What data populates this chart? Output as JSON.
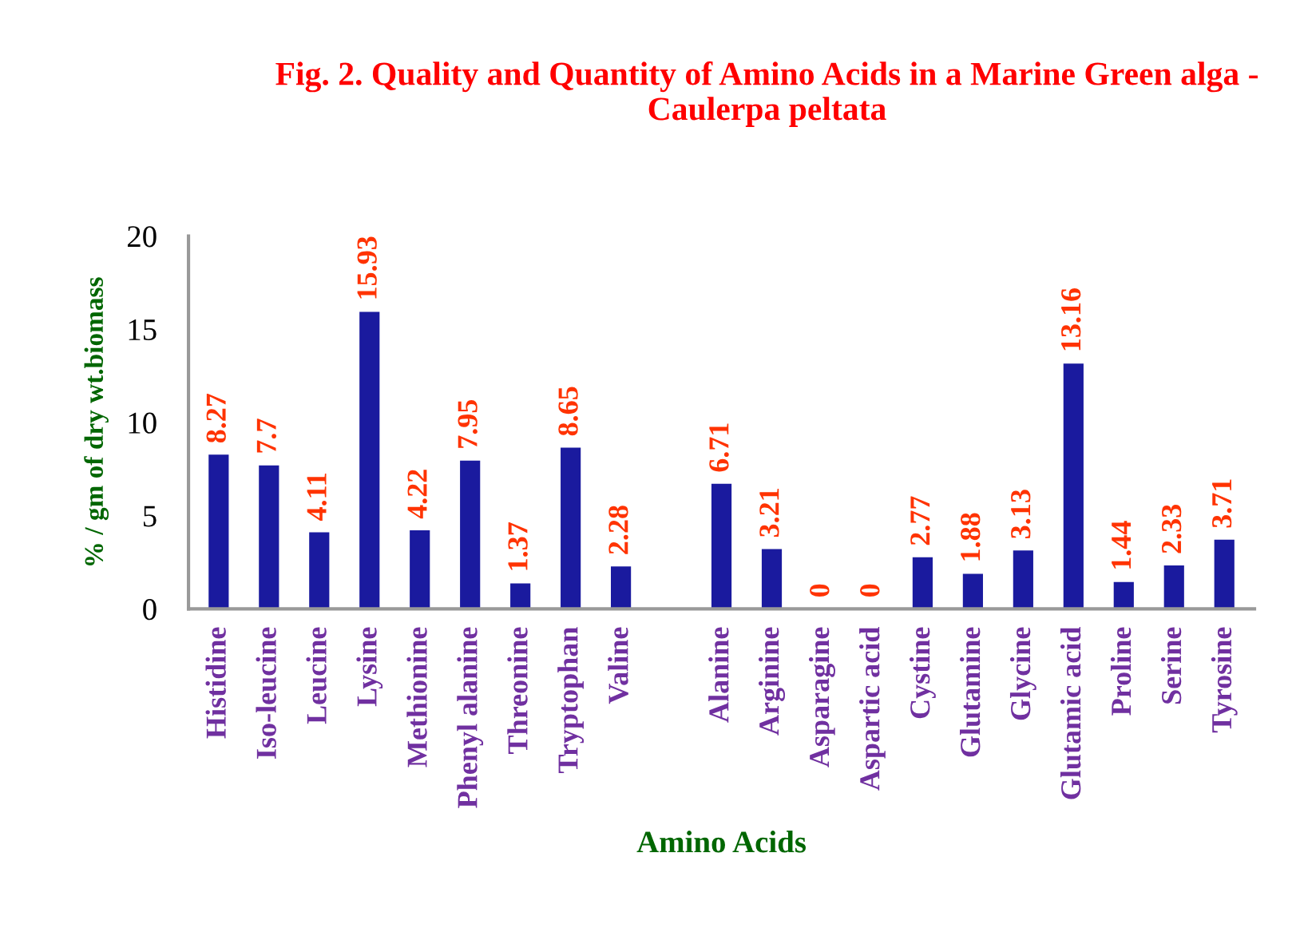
{
  "chart_data": {
    "type": "bar",
    "title": "Fig. 2. Quality and Quantity of Amino Acids in a Marine Green alga - Caulerpa peltata",
    "xlabel": "Amino Acids",
    "ylabel": "% / gm of dry wt.biomass",
    "categories": [
      "Histidine",
      "Iso-leucine",
      "Leucine",
      "Lysine",
      "Methionine",
      "Phenyl alanine",
      "Threonine",
      "Tryptophan",
      "Valine",
      null,
      "Alanine",
      "Arginine",
      "Asparagine",
      "Aspartic acid",
      "Cystine",
      "Glutamine",
      "Glycine",
      "Glutamic acid",
      "Proline",
      "Serine",
      "Tyrosine"
    ],
    "values": [
      8.27,
      7.7,
      4.11,
      15.93,
      4.22,
      7.95,
      1.37,
      8.65,
      2.28,
      null,
      6.71,
      3.21,
      0,
      0,
      2.77,
      1.88,
      3.13,
      13.16,
      1.44,
      2.33,
      3.71
    ],
    "color": "#1a1a9e",
    "ylim": [
      0,
      20
    ],
    "yticks": [
      0,
      5,
      10,
      15,
      20
    ],
    "grid": false,
    "data_labels": true,
    "legend": false
  }
}
